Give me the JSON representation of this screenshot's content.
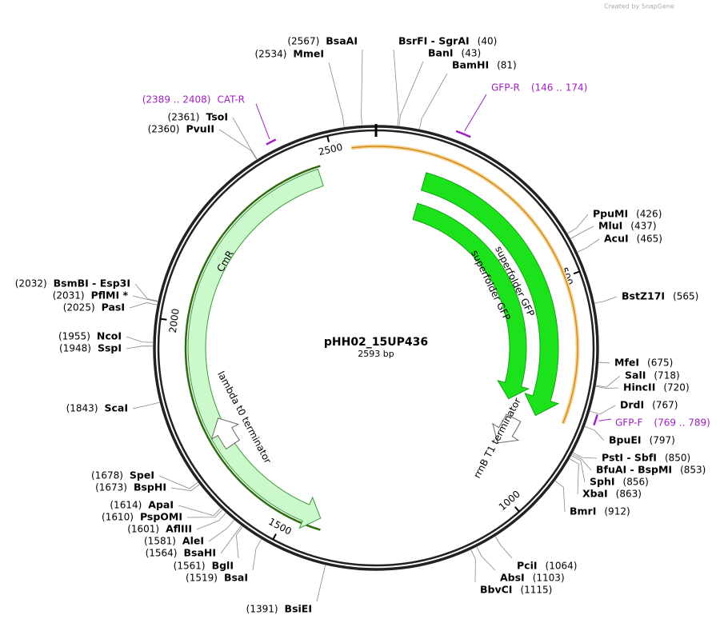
{
  "map": {
    "name": "pHH02_15UP436",
    "size": {
      "value": 2593,
      "label": "2593 bp"
    },
    "ticks": [
      500,
      1000,
      1500,
      2000,
      2500
    ],
    "sites": [
      {
        "name": "BsaAI",
        "position": {
          "value": 2567,
          "label": "(2567)"
        }
      },
      {
        "name": "MmeI",
        "position": {
          "value": 2534,
          "label": "(2534)"
        }
      },
      {
        "name": "BsrFI  - SgrAI",
        "position": {
          "value": 40,
          "label": "(40)"
        }
      },
      {
        "name": "BanI",
        "position": {
          "value": 43,
          "label": "(43)"
        }
      },
      {
        "name": "BamHI",
        "position": {
          "value": 81,
          "label": "(81)"
        }
      },
      {
        "name": "TsoI",
        "position": {
          "value": 2361,
          "label": "(2361)"
        }
      },
      {
        "name": "PvuII",
        "position": {
          "value": 2360,
          "label": "(2360)"
        }
      },
      {
        "name": "PpuMI",
        "position": {
          "value": 426,
          "label": "(426)"
        }
      },
      {
        "name": "MluI",
        "position": {
          "value": 437,
          "label": "(437)"
        }
      },
      {
        "name": "AcuI",
        "position": {
          "value": 465,
          "label": "(465)"
        }
      },
      {
        "name": "BstZ17I",
        "position": {
          "value": 565,
          "label": "(565)"
        }
      },
      {
        "name": "MfeI",
        "position": {
          "value": 675,
          "label": "(675)"
        }
      },
      {
        "name": "SalI",
        "position": {
          "value": 718,
          "label": "(718)"
        }
      },
      {
        "name": "HincII",
        "position": {
          "value": 720,
          "label": "(720)"
        }
      },
      {
        "name": "DrdI",
        "position": {
          "value": 767,
          "label": "(767)"
        }
      },
      {
        "name": "BpuEI",
        "position": {
          "value": 797,
          "label": "(797)"
        }
      },
      {
        "name": "PstI  - SbfI",
        "position": {
          "value": 850,
          "label": "(850)"
        }
      },
      {
        "name": "BfuAI  - BspMI",
        "position": {
          "value": 853,
          "label": "(853)"
        }
      },
      {
        "name": "SphI",
        "position": {
          "value": 856,
          "label": "(856)"
        }
      },
      {
        "name": "XbaI",
        "position": {
          "value": 863,
          "label": "(863)"
        }
      },
      {
        "name": "BmrI",
        "position": {
          "value": 912,
          "label": "(912)"
        }
      },
      {
        "name": "PciI",
        "position": {
          "value": 1064,
          "label": "(1064)"
        }
      },
      {
        "name": "AbsI",
        "position": {
          "value": 1103,
          "label": "(1103)"
        }
      },
      {
        "name": "BbvCI",
        "position": {
          "value": 1115,
          "label": "(1115)"
        }
      },
      {
        "name": "BsiEI",
        "position": {
          "value": 1391,
          "label": "(1391)"
        }
      },
      {
        "name": "BsaI",
        "position": {
          "value": 1519,
          "label": "(1519)"
        }
      },
      {
        "name": "BglI",
        "position": {
          "value": 1561,
          "label": "(1561)"
        }
      },
      {
        "name": "BsaHI",
        "position": {
          "value": 1564,
          "label": "(1564)"
        }
      },
      {
        "name": "AleI",
        "position": {
          "value": 1581,
          "label": "(1581)"
        }
      },
      {
        "name": "AflIII",
        "position": {
          "value": 1601,
          "label": "(1601)"
        }
      },
      {
        "name": "PspOMI",
        "position": {
          "value": 1610,
          "label": "(1610)"
        }
      },
      {
        "name": "ApaI",
        "position": {
          "value": 1614,
          "label": "(1614)"
        }
      },
      {
        "name": "BspHI",
        "position": {
          "value": 1673,
          "label": "(1673)"
        }
      },
      {
        "name": "SpeI",
        "position": {
          "value": 1678,
          "label": "(1678)"
        }
      },
      {
        "name": "ScaI",
        "position": {
          "value": 1843,
          "label": "(1843)"
        }
      },
      {
        "name": "SspI",
        "position": {
          "value": 1948,
          "label": "(1948)"
        }
      },
      {
        "name": "NcoI",
        "position": {
          "value": 1955,
          "label": "(1955)"
        }
      },
      {
        "name": "PasI",
        "position": {
          "value": 2025,
          "label": "(2025)"
        }
      },
      {
        "name": "PflMI *",
        "position": {
          "value": 2031,
          "label": "(2031)"
        }
      },
      {
        "name": "BsmBI  - Esp3I",
        "position": {
          "value": 2032,
          "label": "(2032)"
        }
      }
    ],
    "primers": [
      {
        "name": "CAT-R",
        "range": {
          "start": 2389,
          "end": 2408,
          "label": "(2389 .. 2408)"
        }
      },
      {
        "name": "GFP-R",
        "range": {
          "start": 146,
          "end": 174,
          "label": "(146 .. 174)"
        }
      },
      {
        "name": "GFP-F",
        "range": {
          "start": 769,
          "end": 789,
          "label": "(769 .. 789)"
        }
      }
    ],
    "features": [
      {
        "name": "CmR"
      },
      {
        "name": "lambda t0 terminator"
      },
      {
        "name": "superfolder GFP"
      },
      {
        "name": "superfolder GFP"
      },
      {
        "name": "rrnB T1 terminator"
      }
    ]
  },
  "watermark": "Created by SnapGene"
}
